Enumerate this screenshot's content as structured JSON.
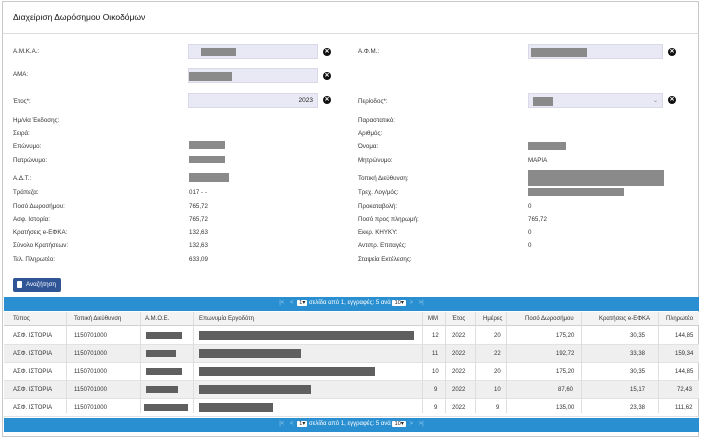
{
  "page": {
    "title": "Διαχείριση Δωρόσημου Οικοδόμων"
  },
  "form": {
    "amka_label": "Α.Μ.Κ.Α.:",
    "afm_label": "Α.Φ.Μ.:",
    "ama_label": "ΑΜΑ:",
    "year_label": "Έτος*:",
    "year_value": "2023",
    "period_label": "Περίοδος*:",
    "clear_icon": "circle-x-icon"
  },
  "details": {
    "left": [
      {
        "label": "Ημ/νία Έκδοσης:",
        "value": ""
      },
      {
        "label": "Σειρά:",
        "value": ""
      },
      {
        "label": "Επώνυμο:",
        "value": ""
      },
      {
        "label": "Πατρώνυμο:",
        "value": ""
      },
      {
        "label": "Α.Δ.Τ.:",
        "value": ""
      },
      {
        "label": "Τράπεζα:",
        "value": "017 - -"
      },
      {
        "label": "Ποσό Δωροσήμου:",
        "value": "765,72"
      },
      {
        "label": "Ασφ. Ιστορία:",
        "value": "765,72"
      },
      {
        "label": "Κρατήσεις e-ΕΦΚΑ:",
        "value": "132,63"
      },
      {
        "label": "Σύνολο Κρατήσεων:",
        "value": "132,63"
      },
      {
        "label": "Τελ. Πληρωτέο:",
        "value": "633,09"
      }
    ],
    "right": [
      {
        "label": "Παραστατικό:",
        "value": ""
      },
      {
        "label": "Αριθμός:",
        "value": ""
      },
      {
        "label": "Όνομα:",
        "value": ""
      },
      {
        "label": "Μητρώνυμο:",
        "value": "ΜΑΡΙΑ"
      },
      {
        "label": "Τοπική Διεύθυνση:",
        "value": ""
      },
      {
        "label": "Τρεχ. Λογ/μός:",
        "value": ""
      },
      {
        "label": "Προκαταβολή:",
        "value": "0"
      },
      {
        "label": "Ποσό προς πληρωμή:",
        "value": "765,72"
      },
      {
        "label": "Εκκρ. ΚΗΥΚΥ:",
        "value": "0"
      },
      {
        "label": "Αντιπρ. Επιταγές:",
        "value": "0"
      },
      {
        "label": "Σταψεία Εκτέλεσης:",
        "value": ""
      }
    ]
  },
  "search_button": {
    "label": "Αναζήτηση",
    "icon": "document-icon"
  },
  "pagination": {
    "current_page": "1",
    "text": "σελίδα από 1, εγγραφές: 5 ανά",
    "per_page": "10",
    "nav": [
      "|<",
      "<",
      ">",
      ">|"
    ]
  },
  "table": {
    "columns": [
      "Τύπος",
      "Τοπική Διεύθυνση",
      "Α.Μ.Ο.Ε.",
      "Επωνυμία Εργοδότη",
      "ΜΜ",
      "Έτος",
      "Ημέρες",
      "Ποσό Δωροσήμου",
      "Κρατήσεις e-ΕΦΚΑ",
      "Πληρωτέο"
    ],
    "rows": [
      {
        "type": "ΑΣΦ. ΙΣΤΟΡΙΑ",
        "local_office": "1150701000",
        "mm": "12",
        "year": "2022",
        "days": "20",
        "amount": "175,20",
        "deductions": "30,35",
        "payable": "144,85"
      },
      {
        "type": "ΑΣΦ. ΙΣΤΟΡΙΑ",
        "local_office": "1150701000",
        "mm": "11",
        "year": "2022",
        "days": "22",
        "amount": "192,72",
        "deductions": "33,38",
        "payable": "159,34"
      },
      {
        "type": "ΑΣΦ. ΙΣΤΟΡΙΑ",
        "local_office": "1150701000",
        "mm": "10",
        "year": "2022",
        "days": "20",
        "amount": "175,20",
        "deductions": "30,35",
        "payable": "144,85"
      },
      {
        "type": "ΑΣΦ. ΙΣΤΟΡΙΑ",
        "local_office": "1150701000",
        "mm": "9",
        "year": "2022",
        "days": "10",
        "amount": "87,60",
        "deductions": "15,17",
        "payable": "72,43"
      },
      {
        "type": "ΑΣΦ. ΙΣΤΟΡΙΑ",
        "local_office": "1150701000",
        "mm": "9",
        "year": "2022",
        "days": "9",
        "amount": "135,00",
        "deductions": "23,38",
        "payable": "111,62"
      }
    ]
  },
  "colors": {
    "accent": "#2a8fd0",
    "button": "#2f5597",
    "input_bg": "#e9e9f5",
    "redaction": "#8a8a8a"
  }
}
